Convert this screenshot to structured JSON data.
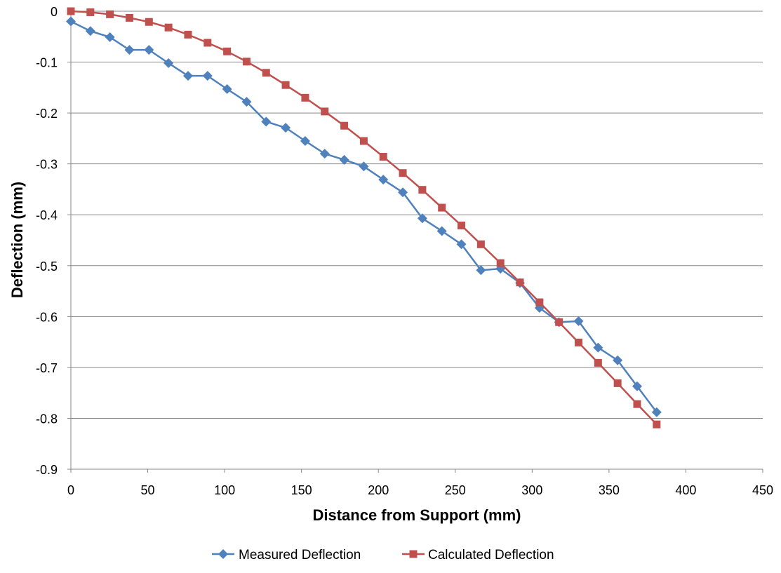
{
  "chart_data": {
    "type": "line",
    "title": "",
    "xlabel": "Distance from Support (mm)",
    "ylabel": "Deflection (mm)",
    "xlim": [
      0,
      450
    ],
    "ylim": [
      -0.9,
      0
    ],
    "x_ticks": [
      "0",
      "50",
      "100",
      "150",
      "200",
      "250",
      "300",
      "350",
      "400",
      "450"
    ],
    "y_ticks": [
      "0",
      "-0.1",
      "-0.2",
      "-0.3",
      "-0.4",
      "-0.5",
      "-0.6",
      "-0.7",
      "-0.8",
      "-0.9"
    ],
    "grid": "horizontal",
    "legend_position": "bottom",
    "series": [
      {
        "name": "Measured Deflection",
        "color": "#4F81BD",
        "marker": "diamond",
        "x": [
          0,
          12.7,
          25.4,
          38.1,
          50.8,
          63.5,
          76.2,
          88.9,
          101.6,
          114.3,
          127,
          139.7,
          152.4,
          165.1,
          177.8,
          190.5,
          203.2,
          215.9,
          228.6,
          241.3,
          254,
          266.7,
          279.4,
          292.1,
          304.8,
          317.5,
          330.2,
          342.9,
          355.6,
          368.3,
          381
        ],
        "y": [
          -0.02,
          -0.039,
          -0.051,
          -0.076,
          -0.076,
          -0.102,
          -0.127,
          -0.127,
          -0.153,
          -0.178,
          -0.217,
          -0.229,
          -0.255,
          -0.28,
          -0.292,
          -0.305,
          -0.331,
          -0.356,
          -0.407,
          -0.432,
          -0.458,
          -0.509,
          -0.506,
          -0.534,
          -0.583,
          -0.611,
          -0.609,
          -0.661,
          -0.686,
          -0.737,
          -0.788
        ]
      },
      {
        "name": "Calculated Deflection",
        "color": "#C0504D",
        "marker": "square",
        "x": [
          0,
          12.7,
          25.4,
          38.1,
          50.8,
          63.5,
          76.2,
          88.9,
          101.6,
          114.3,
          127,
          139.7,
          152.4,
          165.1,
          177.8,
          190.5,
          203.2,
          215.9,
          228.6,
          241.3,
          254,
          266.7,
          279.4,
          292.1,
          304.8,
          317.5,
          330.2,
          342.9,
          355.6,
          368.3,
          381
        ],
        "y": [
          0,
          -0.002,
          -0.006,
          -0.013,
          -0.021,
          -0.032,
          -0.046,
          -0.062,
          -0.079,
          -0.099,
          -0.121,
          -0.145,
          -0.17,
          -0.197,
          -0.225,
          -0.255,
          -0.286,
          -0.318,
          -0.351,
          -0.386,
          -0.421,
          -0.458,
          -0.495,
          -0.533,
          -0.572,
          -0.611,
          -0.651,
          -0.691,
          -0.731,
          -0.772,
          -0.812
        ]
      }
    ]
  }
}
